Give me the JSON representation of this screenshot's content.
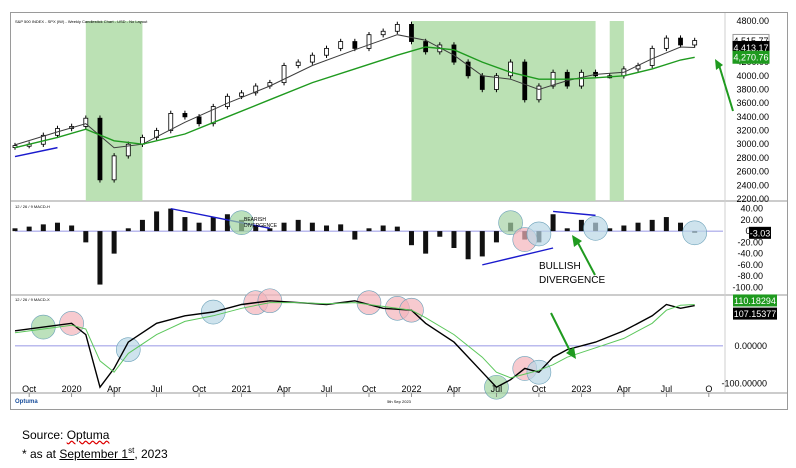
{
  "chart_data": [
    {
      "type": "candlestick",
      "panel": "price",
      "title": "S&P 500 INDEX - SPX (IW) - Weekly Candlestick Chart - USD - No Layout",
      "y_ticks": [
        "4800.00",
        "4400.00",
        "4200.00",
        "4000.00",
        "3800.00",
        "3600.00",
        "3400.00",
        "3200.00",
        "3000.00",
        "2800.00",
        "2600.00",
        "2400.00",
        "2200.00"
      ],
      "ylim": [
        2200,
        4800
      ],
      "value_labels": [
        {
          "text": "4,515.77",
          "value": 4515.77,
          "color": "#000000",
          "bg": "#ffffff"
        },
        {
          "text": "4,413.17",
          "value": 4413.17,
          "color": "#ffffff",
          "bg": "#000000"
        },
        {
          "text": "4,270.76",
          "value": 4270.76,
          "color": "#ffffff",
          "bg": "#1f9a1f"
        }
      ],
      "shaded_regions": [
        {
          "from": "2020-02",
          "to": "2020-06"
        },
        {
          "from": "2022-01",
          "to": "2023-02"
        },
        {
          "from": "2023-03",
          "to": "2023-04"
        }
      ],
      "series": [
        {
          "name": "price",
          "color": "#000000",
          "x": [
            "2019-09",
            "2019-10",
            "2019-11",
            "2019-12",
            "2020-01",
            "2020-02",
            "2020-03",
            "2020-04",
            "2020-05",
            "2020-06",
            "2020-07",
            "2020-08",
            "2020-09",
            "2020-10",
            "2020-11",
            "2020-12",
            "2021-01",
            "2021-02",
            "2021-03",
            "2021-04",
            "2021-05",
            "2021-06",
            "2021-07",
            "2021-08",
            "2021-09",
            "2021-10",
            "2021-11",
            "2021-12",
            "2022-01",
            "2022-02",
            "2022-03",
            "2022-04",
            "2022-05",
            "2022-06",
            "2022-07",
            "2022-08",
            "2022-09",
            "2022-10",
            "2022-11",
            "2022-12",
            "2023-01",
            "2023-02",
            "2023-03",
            "2023-04",
            "2023-05",
            "2023-06",
            "2023-07",
            "2023-08",
            "2023-09"
          ],
          "y": [
            2980,
            3000,
            3130,
            3230,
            3260,
            3380,
            2480,
            2830,
            3000,
            3100,
            3200,
            3450,
            3400,
            3300,
            3550,
            3700,
            3750,
            3850,
            3900,
            4150,
            4200,
            4300,
            4400,
            4500,
            4400,
            4600,
            4650,
            4750,
            4500,
            4350,
            4450,
            4200,
            4000,
            3800,
            4000,
            4200,
            3650,
            3850,
            4050,
            3850,
            4050,
            4000,
            4000,
            4100,
            4150,
            4400,
            4550,
            4450,
            4515
          ]
        },
        {
          "name": "short MA",
          "color": "#3d3d3d",
          "x": [
            "2019-09",
            "2019-12",
            "2020-02",
            "2020-04",
            "2020-06",
            "2020-09",
            "2020-12",
            "2021-03",
            "2021-06",
            "2021-09",
            "2021-12",
            "2022-02",
            "2022-04",
            "2022-06",
            "2022-08",
            "2022-10",
            "2022-12",
            "2023-02",
            "2023-04",
            "2023-06",
            "2023-08",
            "2023-09"
          ],
          "y": [
            2990,
            3180,
            3300,
            2950,
            3000,
            3320,
            3600,
            3850,
            4150,
            4380,
            4600,
            4520,
            4300,
            4000,
            3950,
            3800,
            3930,
            4020,
            4050,
            4250,
            4420,
            4413
          ]
        },
        {
          "name": "long MA",
          "color": "#1f9a1f",
          "x": [
            "2019-09",
            "2019-12",
            "2020-02",
            "2020-04",
            "2020-06",
            "2020-09",
            "2020-12",
            "2021-03",
            "2021-06",
            "2021-09",
            "2021-12",
            "2022-02",
            "2022-04",
            "2022-06",
            "2022-08",
            "2022-10",
            "2022-12",
            "2023-02",
            "2023-04",
            "2023-06",
            "2023-08",
            "2023-09"
          ],
          "y": [
            2950,
            3100,
            3220,
            3050,
            3000,
            3150,
            3400,
            3650,
            3900,
            4100,
            4300,
            4420,
            4380,
            4200,
            4050,
            3950,
            3950,
            3970,
            4000,
            4100,
            4230,
            4270
          ]
        }
      ],
      "annotations": [
        {
          "text": "",
          "kind": "trendline",
          "from": [
            "2019-09",
            2820
          ],
          "to": [
            "2019-12",
            2950
          ],
          "color": "#1a1acd"
        }
      ]
    },
    {
      "type": "bar",
      "panel": "macd_histogram",
      "title": "12 / 26 / 9 MACD-H",
      "y_ticks": [
        "40.00",
        "20.00",
        "0.00",
        "-20.00",
        "-40.00",
        "-60.00",
        "-80.00",
        "-100.00"
      ],
      "ylim": [
        -110,
        50
      ],
      "value_label": {
        "text": "-3.03",
        "value": -3.03,
        "color": "#ffffff",
        "bg": "#000000"
      },
      "x": [
        "2019-09",
        "2019-10",
        "2019-11",
        "2019-12",
        "2020-01",
        "2020-02",
        "2020-03",
        "2020-04",
        "2020-05",
        "2020-06",
        "2020-07",
        "2020-08",
        "2020-09",
        "2020-10",
        "2020-11",
        "2020-12",
        "2021-01",
        "2021-02",
        "2021-03",
        "2021-04",
        "2021-05",
        "2021-06",
        "2021-07",
        "2021-08",
        "2021-09",
        "2021-10",
        "2021-11",
        "2021-12",
        "2022-01",
        "2022-02",
        "2022-03",
        "2022-04",
        "2022-05",
        "2022-06",
        "2022-07",
        "2022-08",
        "2022-09",
        "2022-10",
        "2022-11",
        "2022-12",
        "2023-01",
        "2023-02",
        "2023-03",
        "2023-04",
        "2023-05",
        "2023-06",
        "2023-07",
        "2023-08",
        "2023-09"
      ],
      "values": [
        5,
        8,
        12,
        15,
        10,
        -20,
        -95,
        -40,
        5,
        20,
        35,
        40,
        25,
        15,
        25,
        30,
        20,
        10,
        5,
        15,
        20,
        15,
        10,
        12,
        -15,
        5,
        10,
        8,
        -25,
        -40,
        -10,
        -30,
        -50,
        -45,
        -20,
        15,
        -15,
        -20,
        30,
        5,
        20,
        15,
        5,
        10,
        15,
        20,
        25,
        15,
        -3.03
      ],
      "annotations": [
        {
          "text": "BEARISH DIVERGENCE",
          "color": "#000000"
        },
        {
          "text": "BULLISH DIVERGENCE",
          "color": "#000000"
        }
      ]
    },
    {
      "type": "line",
      "panel": "macd",
      "title": "12 / 26 / 9 MACD-X",
      "y_ticks": [
        "0.00000",
        "-100.00000"
      ],
      "ylim": [
        -120,
        130
      ],
      "value_labels": [
        {
          "text": "110.18294",
          "value": 110.18294,
          "color": "#ffffff",
          "bg": "#1f9a1f"
        },
        {
          "text": "107.15377",
          "value": 107.15377,
          "color": "#ffffff",
          "bg": "#000000"
        }
      ],
      "x_ticks": [
        "Oct",
        "2020",
        "Apr",
        "Jul",
        "Oct",
        "2021",
        "Apr",
        "Jul",
        "Oct",
        "2022",
        "Apr",
        "Jul",
        "Oct",
        "2023",
        "Apr",
        "Jul",
        "O"
      ],
      "x_tick_dates": [
        "2019-10",
        "2020-01",
        "2020-04",
        "2020-07",
        "2020-10",
        "2021-01",
        "2021-04",
        "2021-07",
        "2021-10",
        "2022-01",
        "2022-04",
        "2022-07",
        "2022-10",
        "2023-01",
        "2023-04",
        "2023-07",
        "2023-10"
      ],
      "series": [
        {
          "name": "MACD",
          "color": "#000000",
          "x": [
            "2019-09",
            "2019-11",
            "2020-01",
            "2020-02",
            "2020-03",
            "2020-04",
            "2020-05",
            "2020-07",
            "2020-09",
            "2020-11",
            "2021-01",
            "2021-03",
            "2021-05",
            "2021-07",
            "2021-09",
            "2021-11",
            "2022-01",
            "2022-02",
            "2022-04",
            "2022-06",
            "2022-07",
            "2022-08",
            "2022-09",
            "2022-10",
            "2022-11",
            "2022-12",
            "2023-02",
            "2023-04",
            "2023-06",
            "2023-07",
            "2023-08",
            "2023-09"
          ],
          "y": [
            40,
            50,
            60,
            30,
            -110,
            -60,
            10,
            60,
            80,
            90,
            110,
            120,
            115,
            110,
            120,
            100,
            95,
            60,
            10,
            -70,
            -110,
            -90,
            -60,
            -70,
            -30,
            -10,
            10,
            40,
            80,
            110,
            100,
            107
          ]
        },
        {
          "name": "Signal",
          "color": "#5cc75c",
          "x": [
            "2019-09",
            "2019-11",
            "2020-01",
            "2020-02",
            "2020-03",
            "2020-04",
            "2020-05",
            "2020-07",
            "2020-09",
            "2020-11",
            "2021-01",
            "2021-03",
            "2021-05",
            "2021-07",
            "2021-09",
            "2021-11",
            "2022-01",
            "2022-02",
            "2022-04",
            "2022-06",
            "2022-07",
            "2022-08",
            "2022-09",
            "2022-10",
            "2022-11",
            "2022-12",
            "2023-02",
            "2023-04",
            "2023-06",
            "2023-07",
            "2023-08",
            "2023-09"
          ],
          "y": [
            35,
            45,
            55,
            45,
            -40,
            -70,
            -20,
            30,
            65,
            80,
            100,
            115,
            115,
            112,
            115,
            105,
            95,
            75,
            30,
            -30,
            -70,
            -85,
            -75,
            -65,
            -50,
            -30,
            -5,
            20,
            60,
            95,
            108,
            110
          ]
        }
      ]
    }
  ],
  "footer": {
    "logo_text": "Optuma",
    "date_stamp": "5th Sep 2023"
  },
  "source": {
    "line1_prefix": "Source: ",
    "line1_link": "Optuma",
    "line2_prefix": "* as at ",
    "line2_link": "September  1",
    "line2_sup": "st",
    "line2_suffix": ", 2023"
  }
}
